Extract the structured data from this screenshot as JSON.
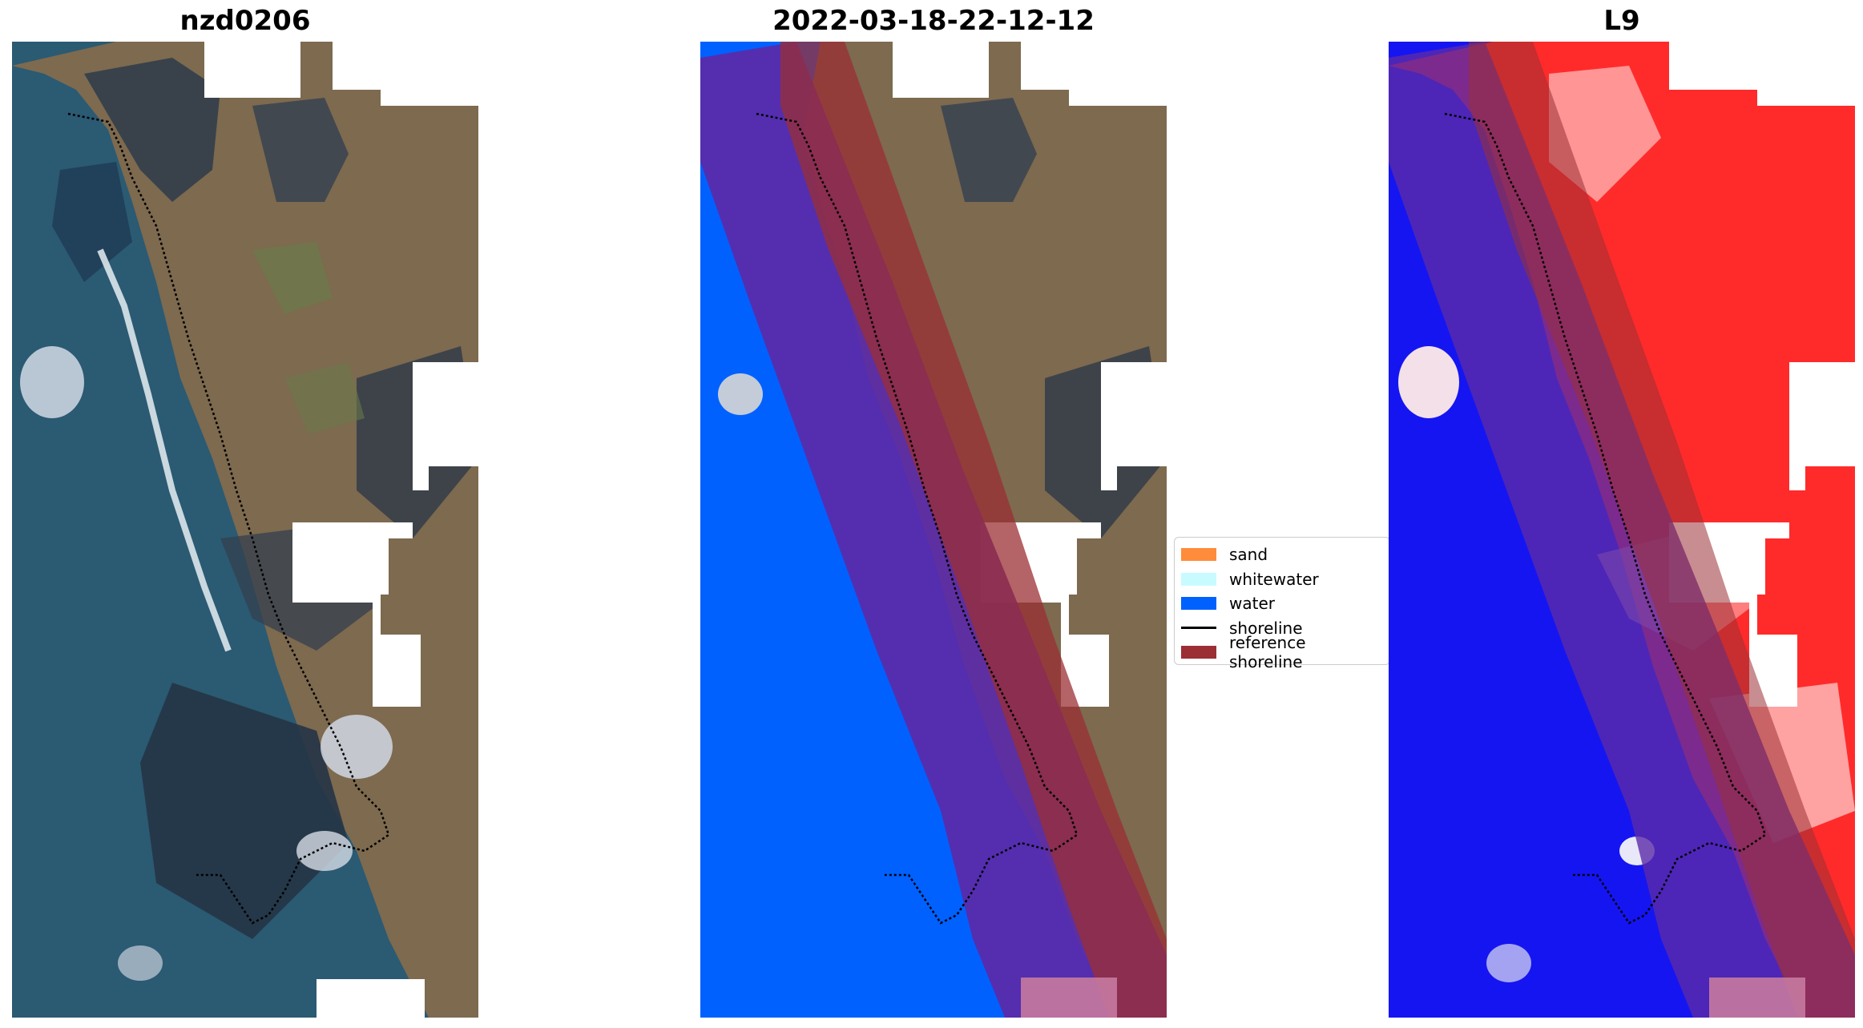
{
  "panels": [
    {
      "title": "nzd0206"
    },
    {
      "title": "2022-03-18-22-12-12"
    },
    {
      "title": "L9"
    }
  ],
  "legend": {
    "items": [
      {
        "label": "sand",
        "color": "#ff8c3a",
        "kind": "patch"
      },
      {
        "label": "whitewater",
        "color": "#c8fbff",
        "kind": "patch"
      },
      {
        "label": "water",
        "color": "#0061ff",
        "kind": "patch"
      },
      {
        "label": "shoreline",
        "color": "#000000",
        "kind": "line"
      },
      {
        "label": "reference shoreline",
        "color": "#9b2f34",
        "kind": "patch"
      }
    ]
  },
  "colors": {
    "ocean": "#2b5a73",
    "land": "#6e6a4e",
    "water_class": "#0061ff",
    "buffer_overlay": "#7b2bd8",
    "reference_shoreline": "#9b2f34",
    "index_positive": "#ff2b2b",
    "index_negative": "#1010ff"
  }
}
